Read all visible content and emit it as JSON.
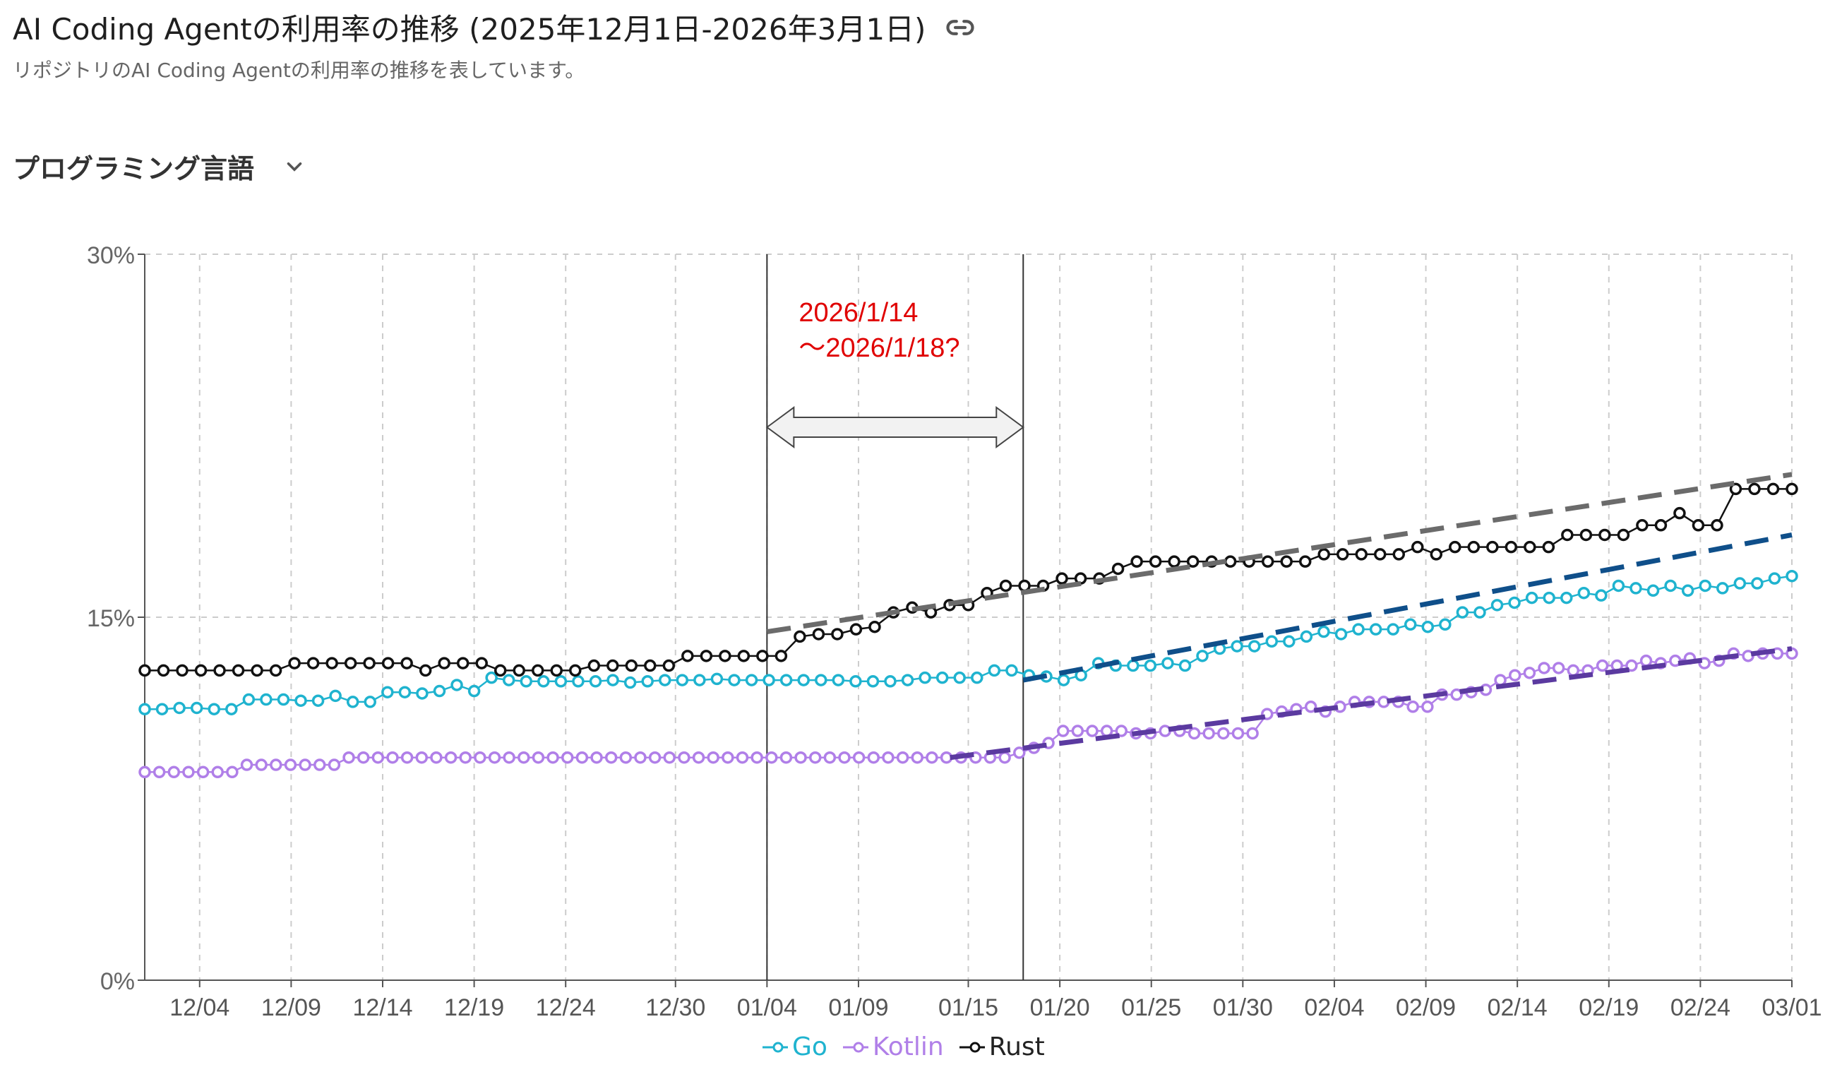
{
  "header": {
    "title": "AI Coding Agentの利用率の推移 (2025年12月1日-2026年3月1日)",
    "subtitle": "リポジトリのAI Coding Agentの利用率の推移を表しています。"
  },
  "selector": {
    "label": "プログラミング言語"
  },
  "icons": {
    "link": "link-icon",
    "dropdown": "chevron-down-icon"
  },
  "chart_data": {
    "type": "line",
    "x_start": "2025-12-01",
    "x_end": "2026-03-01",
    "ylim": [
      0,
      30
    ],
    "y_ticks": [
      "0%",
      "15%",
      "30%"
    ],
    "x_tick_labels": [
      "12/04",
      "12/09",
      "12/14",
      "12/19",
      "12/24",
      "12/30",
      "01/04",
      "01/09",
      "01/15",
      "01/20",
      "01/25",
      "01/30",
      "02/04",
      "02/09",
      "02/14",
      "02/19",
      "02/24",
      "03/01"
    ],
    "grid": true,
    "legend_position": "bottom",
    "annotation": {
      "text_line1": "2026/1/14",
      "text_line2": "〜2026/1/18?",
      "x_from": "2026-01-04",
      "x_to": "2026-01-18",
      "color": "#e00000"
    },
    "series": [
      {
        "name": "Go",
        "color": "#1fb3cf",
        "values": [
          11.2,
          11.2,
          11.25,
          11.25,
          11.2,
          11.2,
          11.6,
          11.6,
          11.6,
          11.55,
          11.55,
          11.75,
          11.5,
          11.5,
          11.9,
          11.9,
          11.85,
          11.95,
          12.2,
          11.95,
          12.5,
          12.4,
          12.35,
          12.35,
          12.35,
          12.35,
          12.35,
          12.4,
          12.3,
          12.35,
          12.4,
          12.4,
          12.4,
          12.45,
          12.4,
          12.4,
          12.4,
          12.4,
          12.4,
          12.4,
          12.4,
          12.35,
          12.35,
          12.35,
          12.4,
          12.5,
          12.5,
          12.5,
          12.5,
          12.8,
          12.8,
          12.6,
          12.55,
          12.4,
          12.6,
          13.1,
          13.0,
          13.0,
          13.0,
          13.1,
          13.0,
          13.4,
          13.7,
          13.8,
          13.8,
          14.0,
          14.0,
          14.2,
          14.4,
          14.3,
          14.5,
          14.5,
          14.5,
          14.7,
          14.6,
          14.7,
          15.2,
          15.2,
          15.5,
          15.6,
          15.8,
          15.8,
          15.8,
          16.0,
          15.9,
          16.3,
          16.2,
          16.1,
          16.3,
          16.1,
          16.3,
          16.2,
          16.4,
          16.4,
          16.6,
          16.7
        ]
      },
      {
        "name": "Kotlin",
        "color": "#b07fe8",
        "values": [
          8.6,
          8.6,
          8.6,
          8.6,
          8.6,
          8.6,
          8.6,
          8.9,
          8.9,
          8.9,
          8.9,
          8.9,
          8.9,
          8.9,
          9.2,
          9.2,
          9.2,
          9.2,
          9.2,
          9.2,
          9.2,
          9.2,
          9.2,
          9.2,
          9.2,
          9.2,
          9.2,
          9.2,
          9.2,
          9.2,
          9.2,
          9.2,
          9.2,
          9.2,
          9.2,
          9.2,
          9.2,
          9.2,
          9.2,
          9.2,
          9.2,
          9.2,
          9.2,
          9.2,
          9.2,
          9.2,
          9.2,
          9.2,
          9.2,
          9.2,
          9.2,
          9.2,
          9.2,
          9.2,
          9.2,
          9.2,
          9.2,
          9.2,
          9.2,
          9.2,
          9.4,
          9.6,
          9.8,
          10.3,
          10.3,
          10.3,
          10.3,
          10.3,
          10.2,
          10.2,
          10.3,
          10.3,
          10.2,
          10.2,
          10.2,
          10.2,
          10.2,
          11.0,
          11.1,
          11.2,
          11.3,
          11.1,
          11.3,
          11.5,
          11.5,
          11.5,
          11.5,
          11.3,
          11.3,
          11.8,
          11.8,
          11.9,
          12.0,
          12.4,
          12.6,
          12.7,
          12.9,
          12.9,
          12.8,
          12.8,
          13.0,
          13.0,
          13.0,
          13.2,
          13.1,
          13.2,
          13.3,
          13.1,
          13.2,
          13.5,
          13.4,
          13.5,
          13.5,
          13.5
        ]
      },
      {
        "name": "Rust",
        "color": "#111111",
        "values": [
          12.8,
          12.8,
          12.8,
          12.8,
          12.8,
          12.8,
          12.8,
          12.8,
          13.1,
          13.1,
          13.1,
          13.1,
          13.1,
          13.1,
          13.1,
          12.8,
          13.1,
          13.1,
          13.1,
          12.8,
          12.8,
          12.8,
          12.8,
          12.8,
          13.0,
          13.0,
          13.0,
          13.0,
          13.0,
          13.4,
          13.4,
          13.4,
          13.4,
          13.4,
          13.4,
          14.2,
          14.3,
          14.3,
          14.5,
          14.6,
          15.2,
          15.4,
          15.2,
          15.5,
          15.5,
          16.0,
          16.3,
          16.3,
          16.3,
          16.6,
          16.6,
          16.6,
          17.0,
          17.3,
          17.3,
          17.3,
          17.3,
          17.3,
          17.3,
          17.3,
          17.3,
          17.3,
          17.3,
          17.6,
          17.6,
          17.6,
          17.6,
          17.6,
          17.9,
          17.6,
          17.9,
          17.9,
          17.9,
          17.9,
          17.9,
          17.9,
          18.4,
          18.4,
          18.4,
          18.4,
          18.8,
          18.8,
          19.3,
          18.8,
          18.8,
          20.3,
          20.3,
          20.3,
          20.3
        ]
      }
    ],
    "trends": [
      {
        "series": "Rust",
        "color": "#6b6b6b",
        "from": [
          "2026-01-04",
          14.4
        ],
        "to": [
          "2026-03-01",
          20.9
        ]
      },
      {
        "series": "Go",
        "color": "#0f4f8a",
        "from": [
          "2026-01-18",
          12.4
        ],
        "to": [
          "2026-03-01",
          18.4
        ]
      },
      {
        "series": "Kotlin",
        "color": "#5b3aa0",
        "from": [
          "2026-01-14",
          9.2
        ],
        "to": [
          "2026-03-01",
          13.7
        ]
      }
    ]
  }
}
